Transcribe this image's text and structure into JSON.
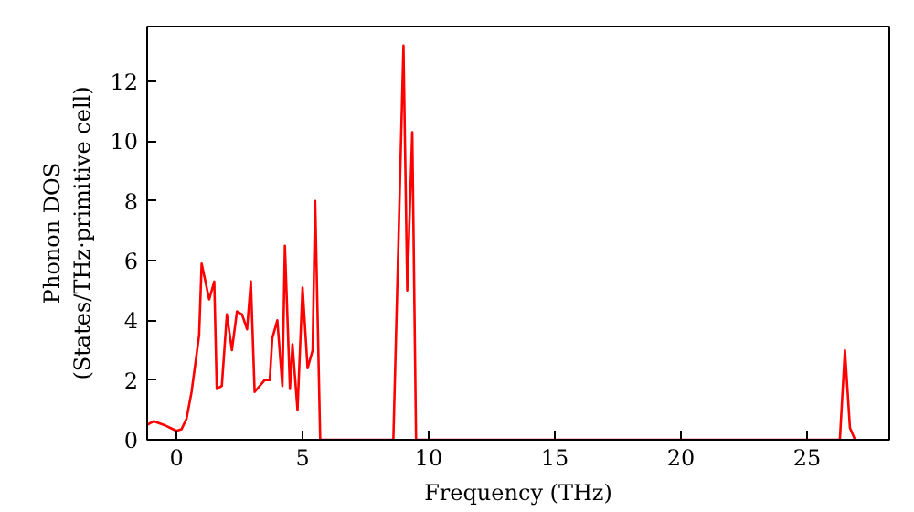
{
  "chart_data": {
    "type": "line",
    "xlabel": "Frequency (THz)",
    "ylabel": "Phonon DOS\n(States/THz·primitive cell)",
    "xlim": [
      -1.16,
      28.26
    ],
    "ylim": [
      0,
      13.84
    ],
    "xticks": [
      0,
      5,
      10,
      15,
      20,
      25
    ],
    "yticks": [
      0,
      2,
      4,
      6,
      8,
      10,
      12
    ],
    "grid": false,
    "x": [
      -1.16,
      -0.9,
      -0.5,
      0,
      0.2,
      0.4,
      0.6,
      0.9,
      1.0,
      1.3,
      1.5,
      1.6,
      1.8,
      2.0,
      2.2,
      2.4,
      2.6,
      2.8,
      2.95,
      3.1,
      3.5,
      3.7,
      3.8,
      4.0,
      4.2,
      4.3,
      4.5,
      4.6,
      4.8,
      5.0,
      5.2,
      5.4,
      5.5,
      5.7,
      8.6,
      9.0,
      9.15,
      9.35,
      9.5,
      26.3,
      26.5,
      26.7,
      26.9
    ],
    "series": [
      {
        "color": "#ff0000",
        "values": [
          0.5,
          0.62,
          0.5,
          0.3,
          0.35,
          0.7,
          1.6,
          3.5,
          5.9,
          4.7,
          5.3,
          1.7,
          1.8,
          4.2,
          3.0,
          4.3,
          4.2,
          3.7,
          5.3,
          1.6,
          2.0,
          2.0,
          3.4,
          4.0,
          1.8,
          6.5,
          1.7,
          3.2,
          1.0,
          5.1,
          2.4,
          3.0,
          8.0,
          0,
          0,
          13.2,
          5.0,
          10.3,
          0,
          0,
          3.0,
          0.4,
          0
        ]
      }
    ]
  }
}
